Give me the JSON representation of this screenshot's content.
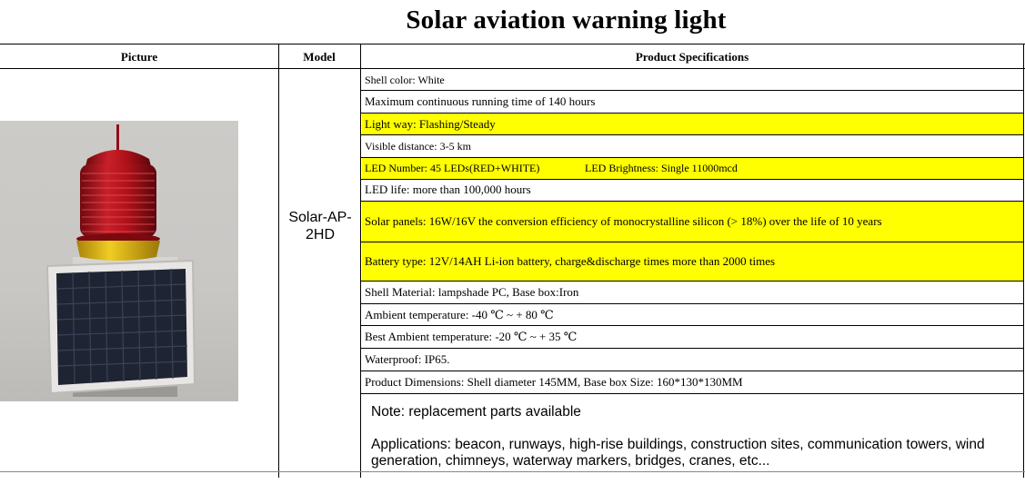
{
  "title": "Solar aviation warning light",
  "headers": {
    "picture": "Picture",
    "model": "Model",
    "specs": "Product Specifications"
  },
  "model": {
    "line1": "Solar-AP-",
    "line2": "2HD"
  },
  "specs": [
    {
      "text": "Shell color: White",
      "highlight": false
    },
    {
      "text": "Maximum continuous running time of 140 hours",
      "highlight": false
    },
    {
      "text": "Light way: Flashing/Steady",
      "highlight": true
    },
    {
      "text": "Visible distance: 3-5 km",
      "highlight": false
    },
    {
      "text": "LED Number: 45 LEDs(RED+WHITE)",
      "text2": "LED Brightness: Single 11000mcd",
      "highlight": true
    },
    {
      "text": "LED life: more than 100,000 hours",
      "highlight": false
    },
    {
      "text": "Solar panels: 16W/16V the conversion efficiency of monocrystalline silicon (> 18%) over the life of 10 years",
      "highlight": true
    },
    {
      "text": "Battery type: 12V/14AH Li-ion battery, charge&discharge times more than 2000 times",
      "highlight": true
    },
    {
      "text": "Shell Material: lampshade PC, Base box:Iron",
      "highlight": false
    },
    {
      "text": "Ambient temperature: -40 ℃ ~ + 80 ℃",
      "highlight": false
    },
    {
      "text": "Best Ambient temperature: -20 ℃ ~ + 35 ℃",
      "highlight": false
    },
    {
      "text": "Waterproof: IP65.",
      "highlight": false
    },
    {
      "text": "Product Dimensions: Shell diameter 145MM, Base box Size: 160*130*130MM",
      "highlight": false
    }
  ],
  "note": {
    "line1": "Note:  replacement parts available",
    "line2": "Applications:  beacon, runways, high-rise buildings, construction sites, communication towers, wind",
    "line3": "generation, chimneys, waterway markers, bridges, cranes, etc..."
  },
  "colors": {
    "highlight": "#ffff00",
    "lamp_red": "#b3121a",
    "lamp_base_yellow": "#e8c21a",
    "solar_cell": "#1f2433"
  },
  "image": {
    "depicts": "solar aviation warning light"
  }
}
